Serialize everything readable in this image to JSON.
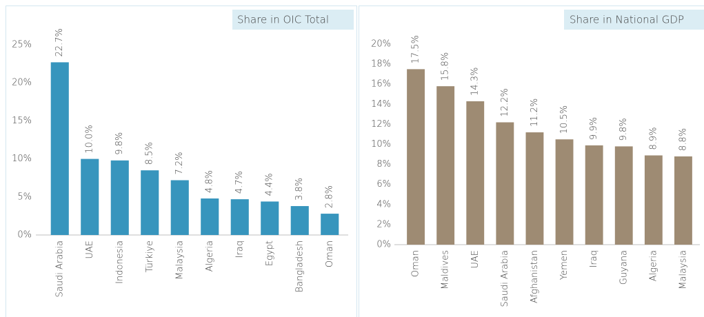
{
  "chart_data": [
    {
      "type": "bar",
      "title": "Share in OIC Total",
      "categories": [
        "Saudi Arabia",
        "UAE",
        "Indonesia",
        "Türkiye",
        "Malaysia",
        "Algeria",
        "Iraq",
        "Egypt",
        "Bangladesh",
        "Oman"
      ],
      "values": [
        22.7,
        10.0,
        9.8,
        8.5,
        7.2,
        4.8,
        4.7,
        4.4,
        3.8,
        2.8
      ],
      "value_labels": [
        "22.7%",
        "10.0%",
        "9.8%",
        "8.5%",
        "7.2%",
        "4.8%",
        "4.7%",
        "4.4%",
        "3.8%",
        "2.8%"
      ],
      "color": "#3795bd",
      "ylim": [
        0,
        25
      ],
      "yticks": [
        {
          "value": 0,
          "label": "0%"
        },
        {
          "value": 5,
          "label": "5%"
        },
        {
          "value": 10,
          "label": "10%"
        },
        {
          "value": 15,
          "label": "15%"
        },
        {
          "value": 20,
          "label": "20%"
        },
        {
          "value": 25,
          "label": "25%"
        }
      ]
    },
    {
      "type": "bar",
      "title": "Share in National GDP",
      "categories": [
        "Oman",
        "Maldives",
        "UAE",
        "Saudi Arabia",
        "Afghanistan",
        "Yemen",
        "Iraq",
        "Guyana",
        "Algeria",
        "Malaysia"
      ],
      "values": [
        17.5,
        15.8,
        14.3,
        12.2,
        11.2,
        10.5,
        9.9,
        9.8,
        8.9,
        8.8
      ],
      "value_labels": [
        "17.5%",
        "15.8%",
        "14.3%",
        "12.2%",
        "11.2%",
        "10.5%",
        "9.9%",
        "9.8%",
        "8.9%",
        "8.8%"
      ],
      "color": "#9e8b73",
      "ylim": [
        0,
        20
      ],
      "yticks": [
        {
          "value": 0,
          "label": "0%"
        },
        {
          "value": 2,
          "label": "2%"
        },
        {
          "value": 4,
          "label": "4%"
        },
        {
          "value": 6,
          "label": "6%"
        },
        {
          "value": 8,
          "label": "8%"
        },
        {
          "value": 10,
          "label": "10%"
        },
        {
          "value": 12,
          "label": "12%"
        },
        {
          "value": 14,
          "label": "14%"
        },
        {
          "value": 16,
          "label": "16%"
        },
        {
          "value": 18,
          "label": "18%"
        },
        {
          "value": 20,
          "label": "20%"
        }
      ]
    }
  ]
}
